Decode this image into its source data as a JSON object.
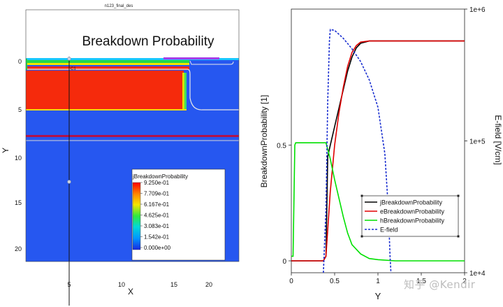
{
  "left_panel": {
    "window_title": "n123_final_des",
    "title": "Breakdown Probability",
    "xlabel": "X",
    "ylabel": "Y",
    "x_ticks": [
      "5",
      "10",
      "15",
      "20"
    ],
    "y_ticks": [
      "0",
      "5",
      "10",
      "15",
      "20"
    ],
    "probe_label": "C1",
    "legend": {
      "title": "jBreakdownProbability",
      "entries": [
        "9.250e-01",
        "7.709e-01",
        "6.167e-01",
        "4.625e-01",
        "3.083e-01",
        "1.542e-01",
        "0.000e+00"
      ]
    },
    "colors": {
      "background": "#2657f0",
      "high": "#f52a0c",
      "low": "#1f45d8"
    }
  },
  "chart_data": {
    "type": "line",
    "xlabel": "Y",
    "ylabel": "BreakdownProbability [1]",
    "y2label": "E-field [V/cm]",
    "xlim": [
      0,
      2
    ],
    "ylim": [
      0,
      1
    ],
    "y2lim": [
      10000,
      1000000
    ],
    "y2scale": "log",
    "x_ticks": [
      "0",
      "0.5",
      "1",
      "1.5",
      "2"
    ],
    "y_ticks": [
      "0",
      "0.5"
    ],
    "y2_ticks": [
      "1e+4",
      "1e+5",
      "1e+6"
    ],
    "legend_position": "lower-right",
    "series": [
      {
        "name": "jBreakdownProbability",
        "color": "#000000",
        "dash": "solid",
        "x": [
          0,
          0.37,
          0.4,
          0.42,
          0.45,
          0.5,
          0.55,
          0.6,
          0.65,
          0.7,
          0.75,
          0.8,
          0.9,
          1.0,
          1.2,
          1.6,
          2.0
        ],
        "y": [
          0,
          0,
          0.02,
          0.45,
          0.5,
          0.58,
          0.66,
          0.74,
          0.82,
          0.88,
          0.92,
          0.94,
          0.95,
          0.95,
          0.95,
          0.95,
          0.95
        ]
      },
      {
        "name": "eBreakdownProbability",
        "color": "#e00000",
        "dash": "solid",
        "x": [
          0,
          0.37,
          0.4,
          0.45,
          0.5,
          0.55,
          0.6,
          0.65,
          0.7,
          0.75,
          0.8,
          0.9,
          1.0,
          1.2,
          1.6,
          2.0
        ],
        "y": [
          0,
          0,
          0.02,
          0.3,
          0.5,
          0.64,
          0.75,
          0.84,
          0.9,
          0.93,
          0.945,
          0.95,
          0.95,
          0.95,
          0.95,
          0.95
        ]
      },
      {
        "name": "hBreakdownProbability",
        "color": "#00e000",
        "dash": "solid",
        "x": [
          0,
          0.02,
          0.04,
          0.05,
          0.1,
          0.2,
          0.3,
          0.4,
          0.45,
          0.5,
          0.55,
          0.6,
          0.65,
          0.7,
          0.8,
          0.9,
          1.0,
          1.2,
          1.6,
          2.0
        ],
        "y": [
          0.02,
          0.02,
          0.5,
          0.51,
          0.51,
          0.51,
          0.51,
          0.51,
          0.44,
          0.35,
          0.27,
          0.19,
          0.12,
          0.07,
          0.03,
          0.01,
          0.005,
          0,
          0,
          0
        ]
      },
      {
        "name": "E-field",
        "color": "#1a2fd0",
        "dash": "dashed",
        "axis": "y2",
        "x": [
          0.37,
          0.4,
          0.42,
          0.44,
          0.45,
          0.5,
          0.6,
          0.7,
          0.8,
          0.9,
          1.0,
          1.08,
          1.12,
          1.14,
          1.15
        ],
        "y": [
          10000,
          30000,
          200000,
          580000,
          700000,
          690000,
          600000,
          500000,
          400000,
          290000,
          180000,
          80000,
          30000,
          13000,
          10000
        ]
      }
    ]
  },
  "watermark": "知乎 @Kendir"
}
